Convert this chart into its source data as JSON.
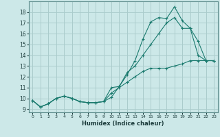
{
  "x": [
    0,
    1,
    2,
    3,
    4,
    5,
    6,
    7,
    8,
    9,
    10,
    11,
    12,
    13,
    14,
    15,
    16,
    17,
    18,
    19,
    20,
    21,
    22,
    23
  ],
  "line1": [
    9.8,
    9.2,
    9.5,
    10.0,
    10.2,
    10.0,
    9.7,
    9.6,
    9.6,
    9.7,
    10.1,
    11.1,
    12.2,
    13.5,
    15.5,
    17.1,
    17.5,
    17.4,
    18.5,
    17.2,
    16.5,
    14.0,
    13.5,
    13.5
  ],
  "line2": [
    9.8,
    9.2,
    9.5,
    10.0,
    10.2,
    10.0,
    9.7,
    9.6,
    9.6,
    9.7,
    11.0,
    11.1,
    12.4,
    13.0,
    14.0,
    15.0,
    16.0,
    17.0,
    17.5,
    16.5,
    16.5,
    15.3,
    13.5,
    13.5
  ],
  "line3": [
    9.8,
    9.2,
    9.5,
    10.0,
    10.2,
    10.0,
    9.7,
    9.6,
    9.6,
    9.7,
    10.5,
    11.0,
    11.5,
    12.0,
    12.5,
    12.8,
    12.8,
    12.8,
    13.0,
    13.2,
    13.5,
    13.5,
    13.5,
    13.5
  ],
  "line_color": "#1a7a6e",
  "bg_color": "#cce8e8",
  "grid_color": "#aacccc",
  "xlabel": "Humidex (Indice chaleur)",
  "ylim": [
    8.7,
    19.0
  ],
  "xlim": [
    -0.5,
    23.5
  ],
  "yticks": [
    9,
    10,
    11,
    12,
    13,
    14,
    15,
    16,
    17,
    18
  ],
  "xticks": [
    0,
    1,
    2,
    3,
    4,
    5,
    6,
    7,
    8,
    9,
    10,
    11,
    12,
    13,
    14,
    15,
    16,
    17,
    18,
    19,
    20,
    21,
    22,
    23
  ]
}
